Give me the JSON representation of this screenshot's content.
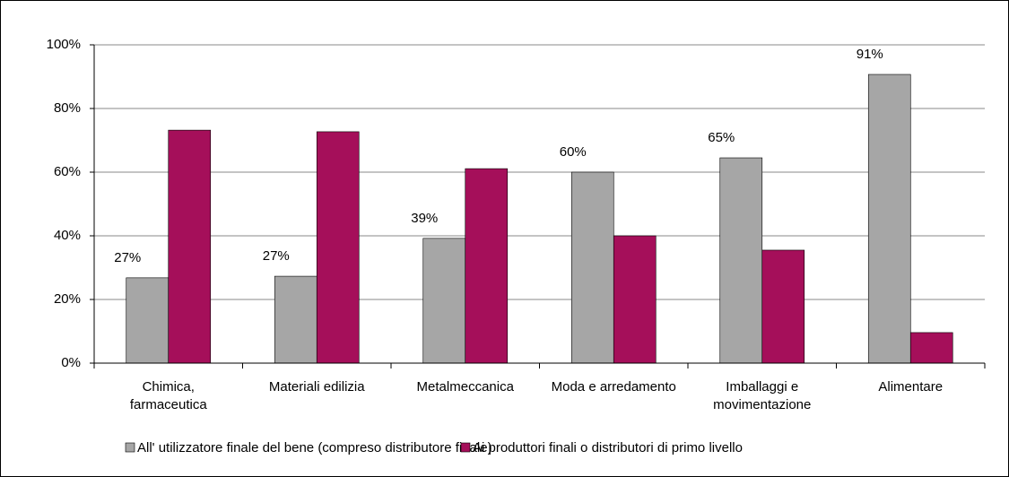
{
  "chart_data": {
    "type": "bar",
    "categories": [
      "Chimica,\nfarmaceutica",
      "Materiali edilizia",
      "Metalmeccanica",
      "Moda e arredamento",
      "Imballaggi e\nmovimentazione",
      "Alimentare"
    ],
    "series": [
      {
        "name": "All' utilizzatore finale del bene (compreso distributore finale)",
        "color": "#a6a6a6",
        "values": [
          26.8,
          27.3,
          39.2,
          60,
          64.5,
          90.7
        ],
        "value_labels": [
          "27%",
          "27%",
          "39%",
          "60%",
          "65%",
          "91%"
        ]
      },
      {
        "name": "Ai produttori finali o distributori di primo livello",
        "color": "#a50f5a",
        "values": [
          73.2,
          72.7,
          61.1,
          40,
          35.5,
          9.6
        ]
      }
    ],
    "ylim": [
      0,
      100
    ],
    "yticks": [
      {
        "value": 0,
        "label": "0%"
      },
      {
        "value": 20,
        "label": "20%"
      },
      {
        "value": 40,
        "label": "40%"
      },
      {
        "value": 60,
        "label": "60%"
      },
      {
        "value": 80,
        "label": "80%"
      },
      {
        "value": 100,
        "label": "100%"
      }
    ],
    "grid": true,
    "legend": "bottom"
  }
}
